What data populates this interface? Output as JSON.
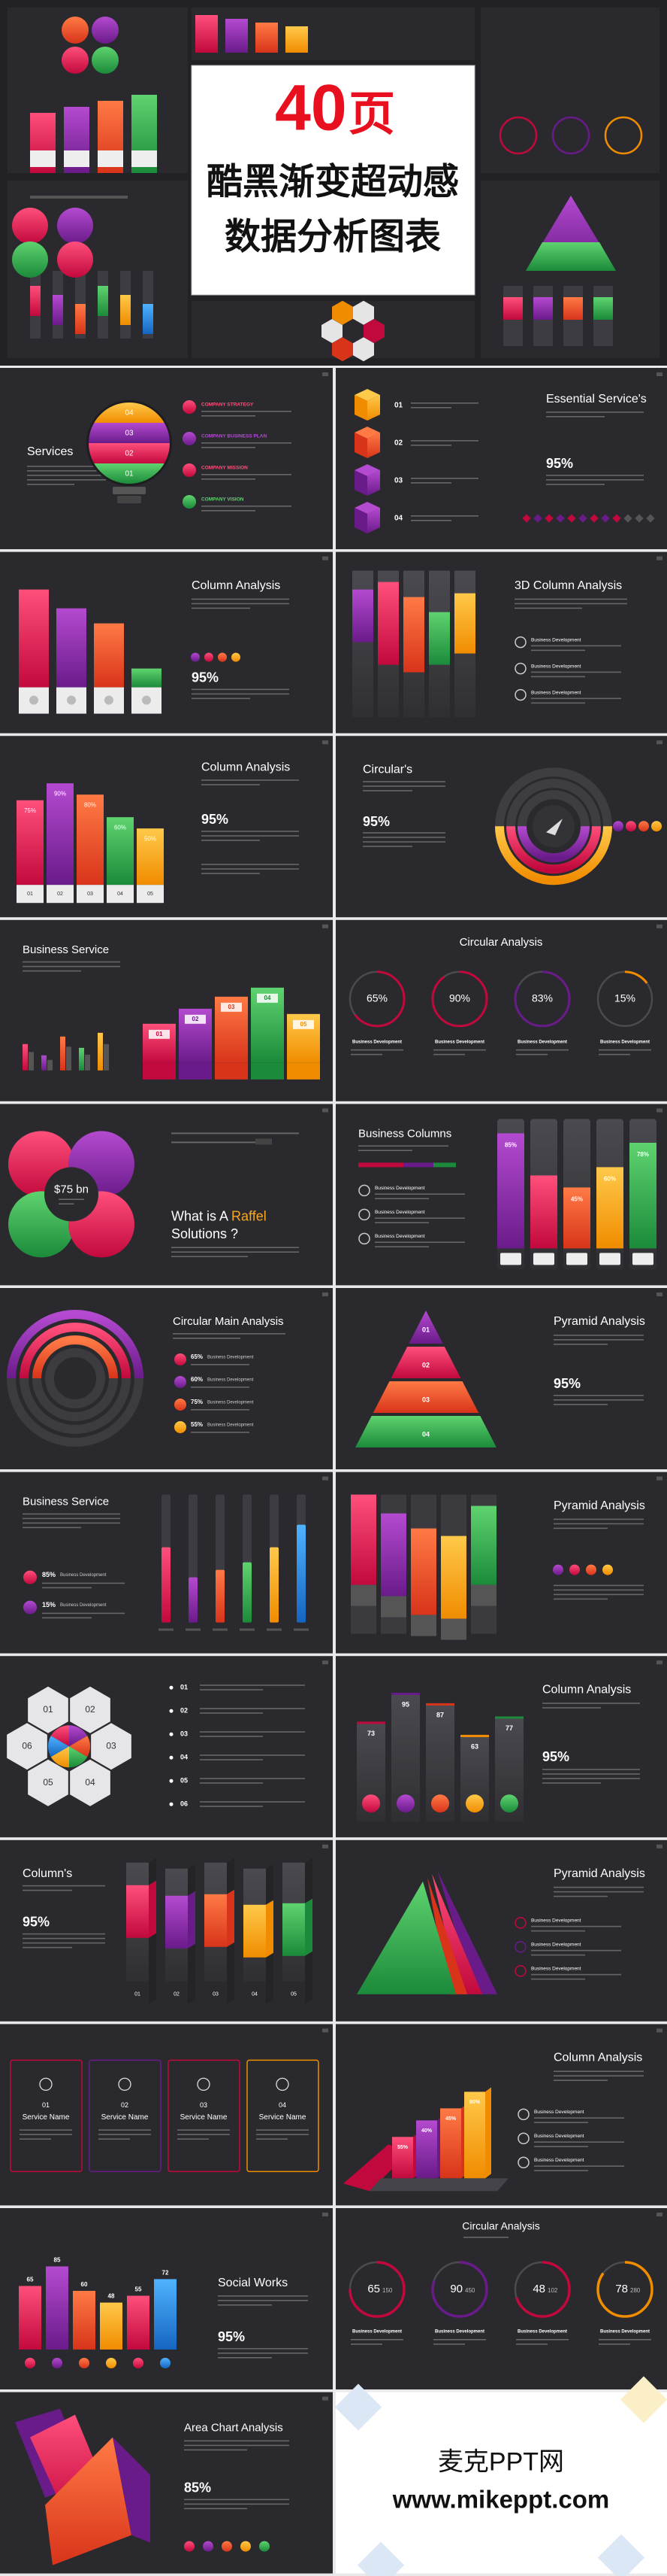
{
  "banner": {
    "number": "40",
    "unit": "页",
    "line1": "酷黑渐变超动感",
    "line2": "数据分析图表"
  },
  "slides": [
    {
      "title": "Services",
      "numbers": [
        "04",
        "03",
        "02",
        "01"
      ],
      "items": [
        "COMPANY STRATEGY",
        "COMPANY BUSINESS PLAN",
        "COMPANY MISSION",
        "COMPANY VISION"
      ]
    },
    {
      "title": "Essential Service's",
      "numbers": [
        "01",
        "02",
        "03",
        "04"
      ],
      "stat": "95%"
    },
    {
      "title": "Column Analysis",
      "stat": "95%"
    },
    {
      "title": "3D Column Analysis",
      "items": [
        "Business Development",
        "Business Development",
        "Business Development"
      ]
    },
    {
      "title": "Column Analysis",
      "stat": "95%",
      "columns": [
        {
          "value": 75,
          "label": "75%"
        },
        {
          "value": 90,
          "label": "90%"
        },
        {
          "value": 80,
          "label": "80%"
        },
        {
          "value": 60,
          "label": "60%"
        },
        {
          "value": 50,
          "label": "50%"
        }
      ],
      "numbers": [
        "01",
        "02",
        "03",
        "04",
        "05"
      ]
    },
    {
      "title": "Circular's",
      "stat": "95%"
    },
    {
      "title": "Business Service",
      "numbers": [
        "01",
        "02",
        "03",
        "04",
        "05"
      ]
    },
    {
      "title": "Circular Analysis",
      "rings": [
        {
          "value": 65,
          "label": "65%"
        },
        {
          "value": 90,
          "label": "90%"
        },
        {
          "value": 83,
          "label": "83%"
        },
        {
          "value": 15,
          "label": "15%"
        }
      ],
      "items": [
        "Business Development",
        "Business Development",
        "Business Development",
        "Business Development"
      ]
    },
    {
      "title_parts": [
        "What is A ",
        "Raffel",
        "Solutions ?"
      ],
      "amount": "$75 bn"
    },
    {
      "title": "Business Columns",
      "columns": [
        {
          "value": 85,
          "label": "85%"
        },
        {
          "value": 45,
          "label": "45%"
        },
        {
          "value": 60,
          "label": "60%"
        },
        {
          "value": 78,
          "label": "78%"
        }
      ],
      "items": [
        "Business Development",
        "Business Development",
        "Business Development"
      ]
    },
    {
      "title": "Circular Main Analysis",
      "stats": [
        "65%",
        "60%",
        "75%",
        "55%"
      ],
      "items": [
        "Business Development",
        "Business Development",
        "Business Development",
        "Business Development"
      ]
    },
    {
      "title": "Pyramid Analysis",
      "numbers": [
        "01",
        "02",
        "03",
        "04"
      ],
      "stat": "95%"
    },
    {
      "title": "Business Service",
      "stats": [
        "85%",
        "15%"
      ],
      "items": [
        "Business Development",
        "Business Development"
      ]
    },
    {
      "title": "Pyramid Analysis"
    },
    {
      "numbers": [
        "01",
        "02",
        "03",
        "04",
        "05",
        "06"
      ]
    },
    {
      "title": "Column Analysis",
      "stat": "95%",
      "values": [
        73,
        95,
        87,
        63,
        77
      ]
    },
    {
      "title": "Column's",
      "stat": "95%",
      "numbers": [
        "01",
        "02",
        "03",
        "04",
        "05"
      ]
    },
    {
      "title": "Pyramid Analysis",
      "items": [
        "Business Development",
        "Business Development",
        "Business Development"
      ]
    },
    {
      "cards": [
        {
          "number": "01",
          "name": "Service Name"
        },
        {
          "number": "02",
          "name": "Service Name"
        },
        {
          "number": "03",
          "name": "Service Name"
        },
        {
          "number": "04",
          "name": "Service Name"
        }
      ]
    },
    {
      "title": "Column Analysis",
      "labels": [
        "55%",
        "40%",
        "45%",
        "80%"
      ],
      "items": [
        "Business Development",
        "Business Development",
        "Business Development"
      ]
    },
    {
      "title": "Social Works",
      "stat": "95%",
      "values": [
        65,
        85,
        60,
        48,
        55,
        72
      ]
    },
    {
      "title": "Circular Analysis",
      "rings": [
        {
          "value": 65,
          "total": 150
        },
        {
          "value": 90,
          "total": 450
        },
        {
          "value": 48,
          "total": 102
        },
        {
          "value": 78,
          "total": 280
        }
      ],
      "items": [
        "Business Development",
        "Business Development",
        "Business Development",
        "Business Development"
      ]
    },
    {
      "title": "Area Chart Analysis",
      "stat": "85%"
    }
  ],
  "footer": {
    "brand": "麦克PPT网",
    "url": "www.mikeppt.com"
  }
}
